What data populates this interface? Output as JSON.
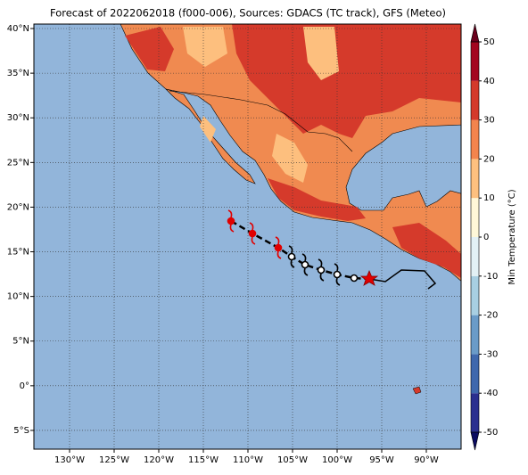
{
  "map": {
    "title": "Forecast of 2022062018 (f000-006), Sources: GDACS (TC track), GFS (Meteo)",
    "xlim": [
      -134,
      -86.1
    ],
    "ylim": [
      -7.1,
      40.5
    ],
    "xticks": [
      {
        "value": -130,
        "label": "130°W"
      },
      {
        "value": -125,
        "label": "125°W"
      },
      {
        "value": -120,
        "label": "120°W"
      },
      {
        "value": -115,
        "label": "115°W"
      },
      {
        "value": -110,
        "label": "110°W"
      },
      {
        "value": -105,
        "label": "105°W"
      },
      {
        "value": -100,
        "label": "100°W"
      },
      {
        "value": -95,
        "label": "95°W"
      },
      {
        "value": -90,
        "label": "90°W"
      }
    ],
    "yticks": [
      {
        "value": -5,
        "label": "5°S"
      },
      {
        "value": 0,
        "label": "0°"
      },
      {
        "value": 5,
        "label": "5°N"
      },
      {
        "value": 10,
        "label": "10°N"
      },
      {
        "value": 15,
        "label": "15°N"
      },
      {
        "value": 20,
        "label": "20°N"
      },
      {
        "value": 25,
        "label": "25°N"
      },
      {
        "value": 30,
        "label": "30°N"
      },
      {
        "value": 35,
        "label": "35°N"
      },
      {
        "value": 40,
        "label": "40°N"
      }
    ],
    "grid": true,
    "colorbar": {
      "label": "Min Temperature (°C)",
      "lim": [
        -50,
        50
      ],
      "ticks": [
        -50,
        -40,
        -30,
        -20,
        -10,
        0,
        10,
        20,
        30,
        40,
        50
      ],
      "colors": [
        "#2b2f8f",
        "#3f68ad",
        "#6a9bc8",
        "#a8cfe2",
        "#e3f1f5",
        "#fff8d8",
        "#fdc07f",
        "#f3844d",
        "#d43a2b",
        "#a3061f"
      ],
      "under_color": "#0b0b60",
      "over_color": "#6a001c"
    }
  }
}
